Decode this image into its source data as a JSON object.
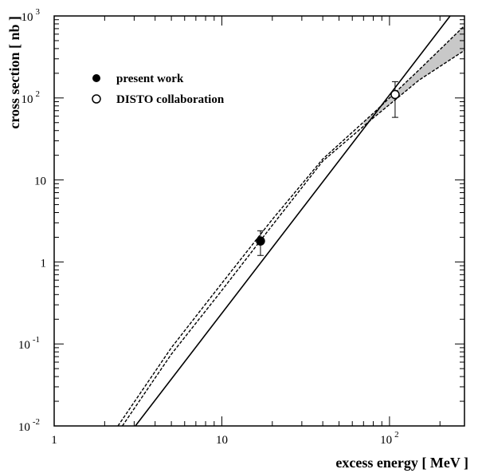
{
  "chart_data": {
    "type": "scatter",
    "title": "",
    "xlabel": "excess energy [ MeV ]",
    "ylabel": "cross section [ nb ]",
    "x_scale": "log",
    "y_scale": "log",
    "xlim": [
      1,
      280
    ],
    "ylim": [
      0.01,
      1000
    ],
    "grid": false,
    "legend_position": "top-left",
    "x_ticks": [
      {
        "value": 1,
        "base": "1",
        "exp": ""
      },
      {
        "value": 10,
        "base": "10",
        "exp": ""
      },
      {
        "value": 100,
        "base": "10",
        "exp": "2"
      }
    ],
    "y_ticks": [
      {
        "value": 0.01,
        "base": "10",
        "exp": "-2"
      },
      {
        "value": 0.1,
        "base": "10",
        "exp": "-1"
      },
      {
        "value": 1,
        "base": "1",
        "exp": ""
      },
      {
        "value": 10,
        "base": "10",
        "exp": ""
      },
      {
        "value": 100,
        "base": "10",
        "exp": "2"
      },
      {
        "value": 1000,
        "base": "10",
        "exp": "3"
      }
    ],
    "series": [
      {
        "name": "present work",
        "marker": "filled-circle",
        "points": [
          {
            "x": 17,
            "y": 1.8,
            "y_err_low": 1.2,
            "y_err_high": 2.4
          }
        ]
      },
      {
        "name": "DISTO collaboration",
        "marker": "open-circle",
        "points": [
          {
            "x": 108,
            "y": 110,
            "y_err_low": 58,
            "y_err_high": 158
          }
        ]
      }
    ],
    "curves": [
      {
        "style": "solid",
        "points": [
          [
            3.05,
            0.01
          ],
          [
            230,
            1000
          ]
        ]
      },
      {
        "style": "dashed-upper",
        "points": [
          [
            2.4,
            0.01
          ],
          [
            5,
            0.09
          ],
          [
            10,
            0.55
          ],
          [
            20,
            3.3
          ],
          [
            40,
            18
          ],
          [
            80,
            65
          ],
          [
            150,
            220
          ],
          [
            280,
            760
          ]
        ]
      },
      {
        "style": "dashed-lower",
        "points": [
          [
            2.55,
            0.01
          ],
          [
            5,
            0.075
          ],
          [
            10,
            0.45
          ],
          [
            20,
            2.8
          ],
          [
            40,
            17
          ],
          [
            80,
            57
          ],
          [
            150,
            165
          ],
          [
            280,
            380
          ]
        ]
      }
    ],
    "band": {
      "color": "#c8c8c8",
      "x_from": 70,
      "x_to": 280
    }
  }
}
